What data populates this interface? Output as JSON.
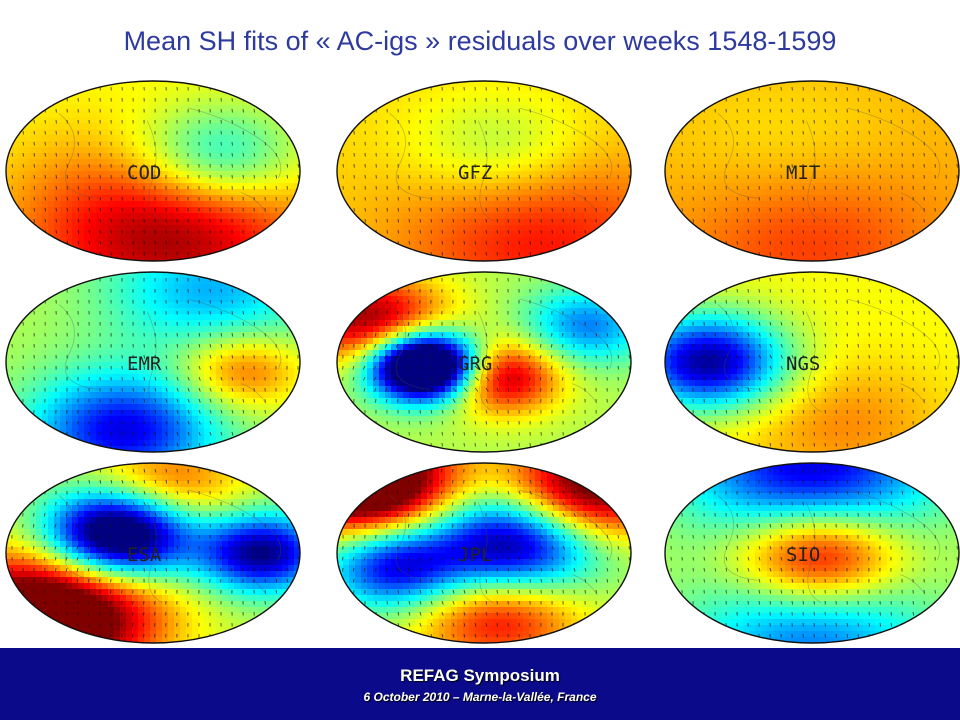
{
  "slide": {
    "title": "Mean SH fits of « AC-igs » residuals over weeks 1548-1599"
  },
  "maps": [
    {
      "label": "COD",
      "base": 0.62,
      "blobs": [
        [
          0.72,
          0.42,
          0.2,
          0.3
        ],
        [
          0.55,
          0.85,
          0.35,
          -0.35
        ]
      ]
    },
    {
      "label": "GFZ",
      "base": 0.66,
      "blobs": [
        [
          0.55,
          0.38,
          0.22,
          0.14
        ],
        [
          0.7,
          0.88,
          0.35,
          -0.2
        ]
      ]
    },
    {
      "label": "MIT",
      "base": 0.7,
      "blobs": [
        [
          0.4,
          0.35,
          0.3,
          0.05
        ],
        [
          0.5,
          0.9,
          0.3,
          -0.12
        ]
      ]
    },
    {
      "label": "EMR",
      "base": 0.55,
      "blobs": [
        [
          0.4,
          0.88,
          0.22,
          0.45
        ],
        [
          0.7,
          0.1,
          0.25,
          0.25
        ],
        [
          0.8,
          0.55,
          0.15,
          -0.25
        ]
      ]
    },
    {
      "label": "GRG",
      "base": 0.55,
      "blobs": [
        [
          0.3,
          0.52,
          0.13,
          1.1
        ],
        [
          0.55,
          0.58,
          0.14,
          -0.45
        ],
        [
          0.12,
          0.28,
          0.18,
          -0.45
        ],
        [
          0.85,
          0.3,
          0.15,
          0.3
        ]
      ]
    },
    {
      "label": "NGS",
      "base": 0.62,
      "blobs": [
        [
          0.15,
          0.5,
          0.18,
          0.6
        ],
        [
          0.6,
          0.85,
          0.25,
          -0.12
        ]
      ]
    },
    {
      "label": "ESA",
      "base": 0.55,
      "blobs": [
        [
          0.38,
          0.4,
          0.17,
          0.8
        ],
        [
          0.87,
          0.5,
          0.15,
          0.55
        ],
        [
          0.15,
          0.85,
          0.25,
          -0.7
        ],
        [
          0.55,
          0.12,
          0.18,
          -0.25
        ]
      ]
    },
    {
      "label": "JPL",
      "base": 0.55,
      "blobs": [
        [
          0.6,
          0.45,
          0.2,
          0.6
        ],
        [
          0.2,
          0.58,
          0.16,
          0.45
        ],
        [
          0.1,
          0.1,
          0.2,
          -0.75
        ],
        [
          0.85,
          0.15,
          0.2,
          -0.55
        ],
        [
          0.55,
          0.85,
          0.2,
          -0.35
        ]
      ]
    },
    {
      "label": "SIO",
      "base": 0.58,
      "blobs": [
        [
          0.52,
          0.52,
          0.2,
          -0.5
        ],
        [
          0.5,
          0.05,
          0.3,
          0.5
        ],
        [
          0.5,
          0.95,
          0.3,
          0.35
        ]
      ]
    }
  ],
  "footer": {
    "event": "REFAG Symposium",
    "date_place": "6 October 2010 – Marne-la-Vallée, France"
  }
}
